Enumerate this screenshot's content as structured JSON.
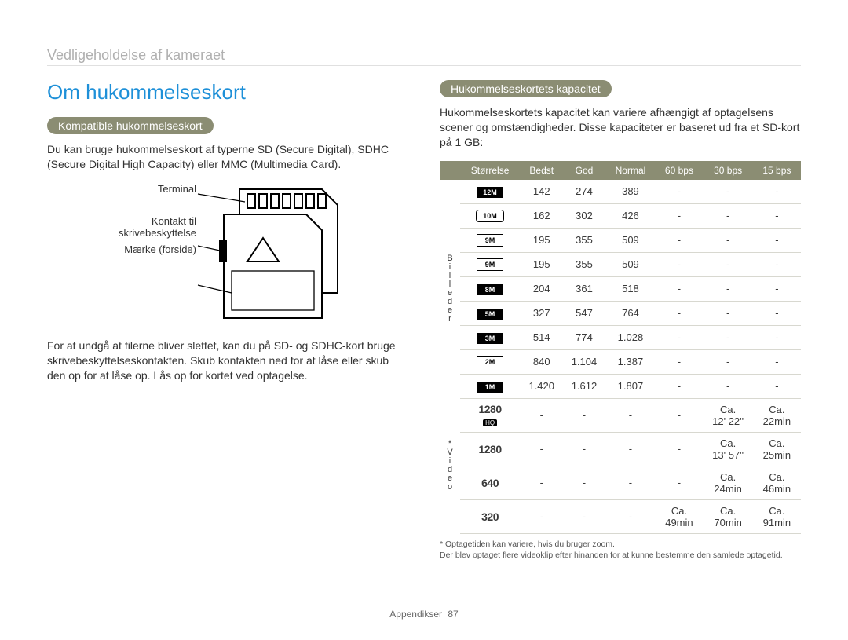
{
  "breadcrumb": "Vedligeholdelse af kameraet",
  "title": "Om hukommelseskort",
  "left": {
    "pill": "Kompatible hukommelseskort",
    "p1": "Du kan bruge hukommelseskort af typerne SD (Secure Digital), SDHC (Secure Digital High Capacity) eller MMC (Multimedia Card).",
    "diagram": {
      "terminal": "Terminal",
      "lock": "Kontakt til skrivebeskyttelse",
      "label": "Mærke (forside)"
    },
    "p2": "For at undgå at filerne bliver slettet, kan du på SD- og SDHC-kort bruge skrivebeskyttelseskontakten. Skub kontakten ned for at låse eller skub den op for at låse op. Lås op for kortet ved optagelse."
  },
  "right": {
    "pill": "Hukommelseskortets kapacitet",
    "p1": "Hukommelseskortets kapacitet kan variere afhængigt af optagelsens scener og omstændigheder. Disse kapaciteter er baseret ud fra et SD-kort på 1 GB:",
    "headers": [
      "Størrelse",
      "Bedst",
      "God",
      "Normal",
      "60 bps",
      "30 bps",
      "15 bps"
    ],
    "cat_photo": "Billeder",
    "cat_video": "* Video",
    "photo_rows": [
      {
        "size": "12M",
        "style": "sb-black",
        "cells": [
          "142",
          "274",
          "389",
          "-",
          "-",
          "-"
        ]
      },
      {
        "size": "10M",
        "style": "sb-outline wide",
        "cells": [
          "162",
          "302",
          "426",
          "-",
          "-",
          "-"
        ]
      },
      {
        "size": "9M",
        "style": "sb-outline",
        "cells": [
          "195",
          "355",
          "509",
          "-",
          "-",
          "-"
        ]
      },
      {
        "size": "9M",
        "style": "sb-outline",
        "cells": [
          "195",
          "355",
          "509",
          "-",
          "-",
          "-"
        ]
      },
      {
        "size": "8M",
        "style": "sb-black",
        "cells": [
          "204",
          "361",
          "518",
          "-",
          "-",
          "-"
        ]
      },
      {
        "size": "5M",
        "style": "sb-black",
        "cells": [
          "327",
          "547",
          "764",
          "-",
          "-",
          "-"
        ]
      },
      {
        "size": "3M",
        "style": "sb-black",
        "cells": [
          "514",
          "774",
          "1.028",
          "-",
          "-",
          "-"
        ]
      },
      {
        "size": "2M",
        "style": "sb-outline",
        "cells": [
          "840",
          "1.104",
          "1.387",
          "-",
          "-",
          "-"
        ]
      },
      {
        "size": "1M",
        "style": "sb-black",
        "cells": [
          "1.420",
          "1.612",
          "1.807",
          "-",
          "-",
          "-"
        ]
      }
    ],
    "video_rows": [
      {
        "size": "1280",
        "hq": true,
        "cells": [
          "-",
          "-",
          "-",
          "-",
          "Ca. 12' 22''",
          "Ca. 22min"
        ]
      },
      {
        "size": "1280",
        "hq": false,
        "cells": [
          "-",
          "-",
          "-",
          "-",
          "Ca. 13' 57''",
          "Ca. 25min"
        ]
      },
      {
        "size": "640",
        "hq": false,
        "cells": [
          "-",
          "-",
          "-",
          "-",
          "Ca. 24min",
          "Ca. 46min"
        ]
      },
      {
        "size": "320",
        "hq": false,
        "cells": [
          "-",
          "-",
          "-",
          "Ca. 49min",
          "Ca. 70min",
          "Ca. 91min"
        ]
      }
    ],
    "footnote1": "* Optagetiden kan variere, hvis du bruger zoom.",
    "footnote2": "Der blev optaget flere videoklip efter hinanden for at kunne bestemme den samlede optagetid."
  },
  "footer": {
    "label": "Appendikser",
    "page": "87"
  },
  "colors": {
    "accent_blue": "#1e90d8",
    "olive": "#8b8d73",
    "grey_text": "#b0b0b0",
    "border": "#d8d8d0"
  }
}
